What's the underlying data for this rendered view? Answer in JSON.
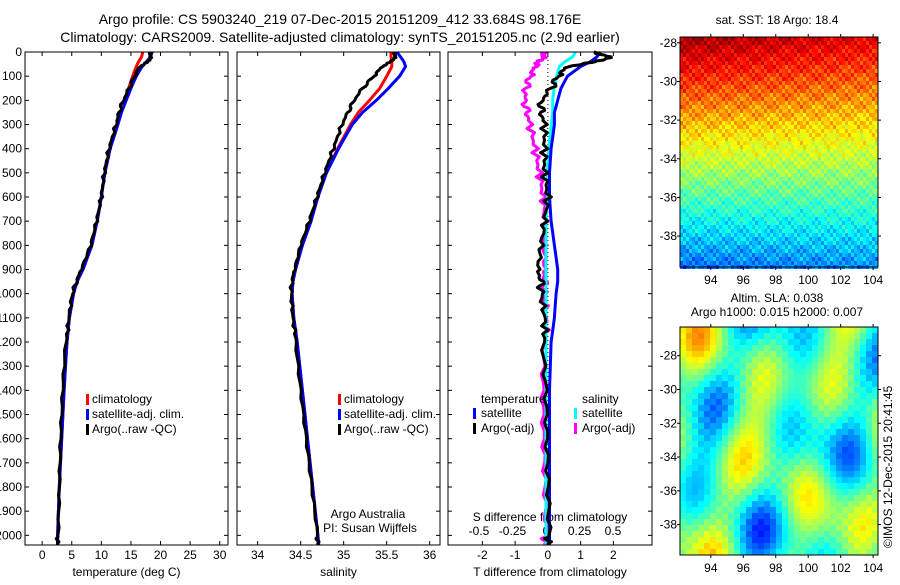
{
  "title_line1": "Argo profile: CS 5903240_219 07-Dec-2015 20151209_412 33.684S 98.176E",
  "title_line2": "Climatology: CARS2009. Satellite-adjusted climatology: synTS_20151205.nc (2.9d earlier)",
  "credit": "©IMOS 12-Dec-2015 20:41:45",
  "colors": {
    "climatology": "#ff0000",
    "satellite": "#0000ff",
    "argo": "#000000",
    "sal_satellite": "#00ffff",
    "sal_argo": "#ff00ff"
  },
  "chart_data": [
    {
      "type": "line",
      "xlabel": "temperature (deg C)",
      "ylabel": "",
      "xlim": [
        -2.9,
        31.4
      ],
      "ylim": [
        2040,
        0
      ],
      "xticks": [
        "0",
        "5",
        "10",
        "15",
        "20",
        "25",
        "30"
      ],
      "xtick_values": [
        0,
        5,
        10,
        15,
        20,
        25,
        30
      ],
      "yticks": [
        "0",
        "100",
        "200",
        "300",
        "400",
        "500",
        "600",
        "700",
        "800",
        "900",
        "1000",
        "1100",
        "1200",
        "1300",
        "1400",
        "1500",
        "1600",
        "1700",
        "1800",
        "1900",
        "2000"
      ],
      "legend": [
        "climatology",
        "satellite-adj. clim.",
        "Argo(..raw -QC)"
      ],
      "depth": [
        0,
        20,
        40,
        60,
        100,
        150,
        200,
        250,
        300,
        400,
        500,
        600,
        700,
        800,
        900,
        950,
        1000,
        1100,
        1200,
        1400,
        1600,
        1800,
        2000,
        2040
      ],
      "series": [
        {
          "name": "climatology",
          "values": [
            17.0,
            16.8,
            16.3,
            15.9,
            15.3,
            14.6,
            13.9,
            13.2,
            12.6,
            11.4,
            10.6,
            10.0,
            9.3,
            8.4,
            6.9,
            5.9,
            5.3,
            4.6,
            4.2,
            3.7,
            3.3,
            2.9,
            2.6,
            2.6
          ]
        },
        {
          "name": "satellite-adj. clim.",
          "values": [
            18.6,
            18.3,
            17.6,
            16.9,
            15.9,
            15.0,
            14.2,
            13.4,
            12.8,
            11.5,
            10.6,
            10.0,
            9.3,
            8.4,
            6.9,
            5.9,
            5.3,
            4.6,
            4.2,
            3.7,
            3.3,
            2.9,
            2.6,
            2.6
          ]
        },
        {
          "name": "Argo(..raw -QC)",
          "values": [
            18.4,
            18.3,
            18.0,
            16.5,
            15.6,
            14.7,
            13.7,
            13.0,
            12.5,
            11.3,
            10.5,
            10.0,
            9.2,
            8.2,
            6.6,
            5.8,
            5.1,
            4.5,
            4.1,
            3.6,
            3.2,
            2.9,
            2.6,
            2.6
          ]
        }
      ]
    },
    {
      "type": "line",
      "xlabel": "salinity",
      "xlim": [
        33.76,
        36.12
      ],
      "ylim": [
        2040,
        0
      ],
      "xticks": [
        "34",
        "34.5",
        "35",
        "35.5",
        "36"
      ],
      "xtick_values": [
        34,
        34.5,
        35,
        35.5,
        36
      ],
      "legend": [
        "climatology",
        "satellite-adj. clim.",
        "Argo(..raw -QC)"
      ],
      "annotation": [
        "Argo Australia",
        "PI: Susan Wijffels"
      ],
      "depth": [
        0,
        20,
        40,
        60,
        100,
        150,
        200,
        250,
        300,
        400,
        500,
        600,
        700,
        800,
        900,
        950,
        1000,
        1100,
        1200,
        1400,
        1600,
        1800,
        2000,
        2040
      ],
      "series": [
        {
          "name": "climatology",
          "values": [
            35.55,
            35.55,
            35.56,
            35.56,
            35.5,
            35.42,
            35.3,
            35.17,
            35.08,
            34.93,
            34.8,
            34.7,
            34.62,
            34.52,
            34.44,
            34.41,
            34.4,
            34.42,
            34.46,
            34.52,
            34.58,
            34.64,
            34.7,
            34.71
          ]
        },
        {
          "name": "satellite-adj. clim.",
          "values": [
            35.62,
            35.66,
            35.7,
            35.72,
            35.65,
            35.52,
            35.38,
            35.22,
            35.1,
            34.94,
            34.8,
            34.7,
            34.62,
            34.52,
            34.44,
            34.41,
            34.4,
            34.42,
            34.46,
            34.52,
            34.58,
            34.64,
            34.7,
            34.71
          ]
        },
        {
          "name": "Argo(..raw -QC)",
          "values": [
            35.6,
            35.6,
            35.55,
            35.45,
            35.35,
            35.22,
            35.12,
            35.05,
            34.98,
            34.88,
            34.78,
            34.69,
            34.6,
            34.5,
            34.43,
            34.4,
            34.39,
            34.41,
            34.45,
            34.51,
            34.57,
            34.63,
            34.69,
            34.7
          ]
        }
      ]
    },
    {
      "type": "line",
      "xlabel": "T difference from climatology",
      "xlabel2": "S difference from climatology",
      "xlim": [
        -3.05,
        3.18
      ],
      "xlim2": [
        -0.5,
        0.5
      ],
      "ylim": [
        2040,
        0
      ],
      "xticks": [
        "-2",
        "-1",
        "0",
        "1",
        "2"
      ],
      "xtick_values": [
        -2,
        -1,
        0,
        1,
        2
      ],
      "xticks2": [
        "-0.5",
        "-0.25",
        "0",
        "0.25",
        "0.5"
      ],
      "xtick_values2": [
        -0.5,
        -0.25,
        0,
        0.25,
        0.5
      ],
      "legend_temperature": {
        "title": "temperature",
        "items": [
          "satellite",
          "Argo(-adj)"
        ]
      },
      "legend_salinity": {
        "title": "salinity",
        "items": [
          "satellite",
          "Argo(-adj)"
        ]
      },
      "depth": [
        0,
        20,
        40,
        60,
        100,
        150,
        200,
        250,
        300,
        400,
        500,
        600,
        700,
        800,
        900,
        950,
        1000,
        1100,
        1200,
        1400,
        1600,
        1800,
        2000,
        2040
      ],
      "series": [
        {
          "name": "T satellite",
          "axis": "T",
          "values": [
            1.6,
            1.5,
            1.3,
            1.0,
            0.6,
            0.4,
            0.3,
            0.2,
            0.2,
            0.1,
            0.05,
            0.05,
            0.1,
            0.2,
            0.3,
            0.3,
            0.25,
            0.2,
            0.1,
            0.05,
            0.05,
            0.05,
            0.05,
            0.05
          ]
        },
        {
          "name": "T Argo(-adj)",
          "axis": "T",
          "values": [
            1.4,
            1.9,
            1.5,
            0.6,
            0.3,
            0.1,
            -0.2,
            -0.2,
            -0.1,
            -0.1,
            -0.1,
            0.0,
            -0.1,
            -0.2,
            -0.3,
            -0.2,
            -0.2,
            -0.1,
            -0.1,
            0.0,
            0.0,
            0.0,
            0.0,
            0.0
          ]
        },
        {
          "name": "S satellite",
          "axis": "S",
          "values": [
            0.22,
            0.2,
            0.14,
            0.1,
            0.08,
            0.06,
            0.05,
            0.05,
            0.04,
            0.02,
            0.01,
            0.01,
            0.0,
            0.0,
            0.0,
            0.0,
            0.0,
            0.0,
            0.0,
            0.0,
            0.0,
            0.0,
            0.0,
            0.0
          ]
        },
        {
          "name": "S Argo(-adj)",
          "axis": "S",
          "values": [
            0.0,
            -0.02,
            -0.05,
            -0.08,
            -0.12,
            -0.15,
            -0.16,
            -0.14,
            -0.12,
            -0.08,
            -0.05,
            -0.02,
            -0.01,
            -0.01,
            -0.01,
            -0.01,
            -0.01,
            0.0,
            0.0,
            -0.01,
            -0.01,
            -0.01,
            -0.01,
            -0.01
          ]
        }
      ]
    },
    {
      "type": "heatmap",
      "title": "sat. SST: 18 Argo: 18.4",
      "xlim": [
        92.1,
        104.3
      ],
      "ylim": [
        -39.6,
        -27.7
      ],
      "xticks": [
        "94",
        "96",
        "98",
        "100",
        "102",
        "104"
      ],
      "xtick_values": [
        94,
        96,
        98,
        100,
        102,
        104
      ],
      "yticks": [
        "-28",
        "-30",
        "-32",
        "-34",
        "-36",
        "-38"
      ],
      "ytick_values": [
        -28,
        -30,
        -32,
        -34,
        -36,
        -38
      ]
    },
    {
      "type": "heatmap",
      "title": "Altim. SLA: 0.038",
      "subtitle": "Argo h1000: 0.015 h2000: 0.007",
      "xlim": [
        92.1,
        104.3
      ],
      "ylim": [
        -39.8,
        -26.3
      ],
      "xticks": [
        "94",
        "96",
        "98",
        "100",
        "102",
        "104"
      ],
      "xtick_values": [
        94,
        96,
        98,
        100,
        102,
        104
      ],
      "yticks": [
        "-28",
        "-30",
        "-32",
        "-34",
        "-36",
        "-38"
      ],
      "ytick_values": [
        -28,
        -30,
        -32,
        -34,
        -36,
        -38
      ]
    }
  ]
}
